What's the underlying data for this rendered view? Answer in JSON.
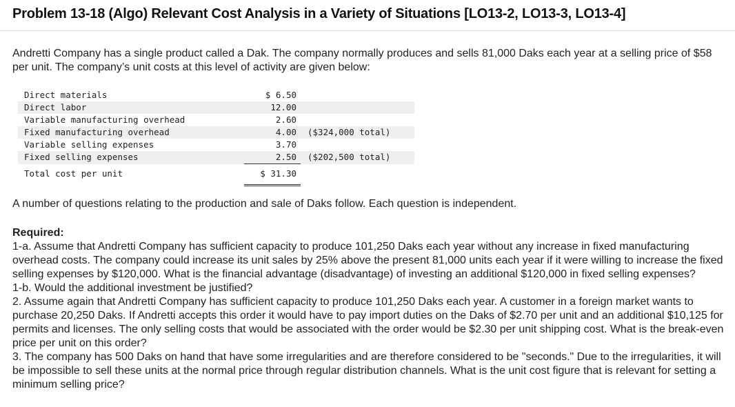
{
  "title": "Problem 13-18 (Algo) Relevant Cost Analysis in a Variety of Situations [LO13-2, LO13-3, LO13-4]",
  "intro": "Andretti Company has a single product called a Dak. The company normally produces and sells 81,000 Daks each year at a selling price of $58 per unit. The company’s unit costs at this level of activity are given below:",
  "costs": [
    {
      "label": "Direct materials",
      "amount": "$ 6.50",
      "note": ""
    },
    {
      "label": "Direct labor",
      "amount": "12.00",
      "note": ""
    },
    {
      "label": "Variable manufacturing overhead",
      "amount": "2.60",
      "note": ""
    },
    {
      "label": "Fixed manufacturing overhead",
      "amount": "4.00",
      "note": "($324,000 total)"
    },
    {
      "label": "Variable selling expenses",
      "amount": "3.70",
      "note": ""
    },
    {
      "label": "Fixed selling expenses",
      "amount": "2.50",
      "note": "($202,500 total)"
    }
  ],
  "total": {
    "label": "Total cost per unit",
    "amount": "$ 31.30"
  },
  "question_intro": "A number of questions relating to the production and sale of Daks follow. Each question is independent.",
  "required_label": "Required:",
  "questions": [
    "1-a. Assume that Andretti Company has sufficient capacity to produce 101,250 Daks each year without any increase in fixed manufacturing overhead costs. The company could increase its unit sales by 25% above the present 81,000 units each year if it were willing to increase the fixed selling expenses by $120,000. What is the financial advantage (disadvantage) of investing an additional $120,000 in fixed selling expenses?",
    "1-b. Would the additional investment be justified?",
    "2. Assume again that Andretti Company has sufficient capacity to produce 101,250 Daks each year. A customer in a foreign market wants to purchase 20,250 Daks. If Andretti accepts this order it would have to pay import duties on the Daks of $2.70 per unit and an additional $10,125 for permits and licenses. The only selling costs that would be associated with the order would be $2.30 per unit shipping cost. What is the break-even price per unit on this order?",
    "3. The company has 500 Daks on hand that have some irregularities and are therefore considered to be \"seconds.\" Due to the irregularities, it will be impossible to sell these units at the normal price through regular distribution channels. What is the unit cost figure that is relevant for setting a minimum selling price?"
  ]
}
